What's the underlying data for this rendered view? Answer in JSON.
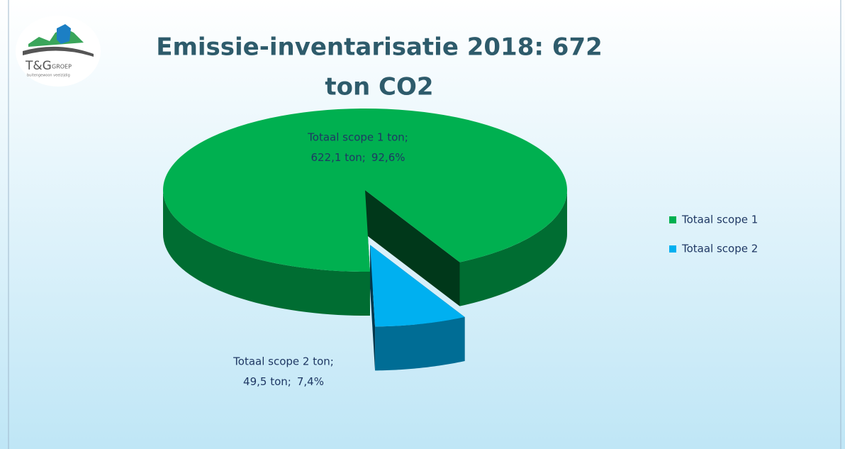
{
  "logo": {
    "name": "T&G",
    "suffix": "GROEP",
    "tagline": "buitengewoon veelzijdig"
  },
  "chart_data": {
    "type": "pie3d",
    "title_lines": [
      "Emissie-inventarisatie 2018: 672",
      "ton CO2"
    ],
    "categories": [
      "Totaal scope 1",
      "Totaal scope 2"
    ],
    "values": [
      622.1,
      49.5
    ],
    "value_labels": [
      "622,1 ton;",
      "49,5 ton;"
    ],
    "percents": [
      92.6,
      7.4
    ],
    "percent_labels": [
      "92,6%",
      "7,4%"
    ],
    "data_label_names": [
      "Totaal scope 1 ton;",
      "Totaal scope 2 ton;"
    ],
    "colors": [
      "#00b050",
      "#00b0f0"
    ],
    "legend": "right"
  }
}
